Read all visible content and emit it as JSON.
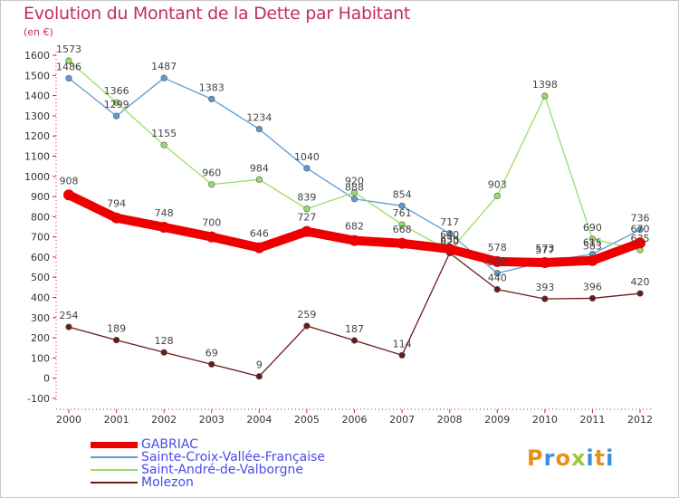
{
  "title": "Evolution du Montant de la Dette par Habitant",
  "unit_label": "(en €)",
  "logo": {
    "text": "Proxiti",
    "letters": [
      {
        "ch": "P",
        "color": "#e8901a"
      },
      {
        "ch": "r",
        "color": "#3b8fd6"
      },
      {
        "ch": "o",
        "color": "#e8901a"
      },
      {
        "ch": "x",
        "color": "#9bc73a"
      },
      {
        "ch": "i",
        "color": "#3b8fd6"
      },
      {
        "ch": "t",
        "color": "#e8901a"
      },
      {
        "ch": "i",
        "color": "#3b8fd6"
      }
    ]
  },
  "chart_data": {
    "type": "line",
    "title": "Evolution du Montant de la Dette par Habitant",
    "ylabel": "(en €)",
    "xlabel": "",
    "x": [
      "2000",
      "2001",
      "2002",
      "2003",
      "2004",
      "2005",
      "2006",
      "2007",
      "2008",
      "2009",
      "2010",
      "2011",
      "2012"
    ],
    "ylim": [
      -100,
      1600
    ],
    "yticks": [
      -100,
      0,
      100,
      200,
      300,
      400,
      500,
      600,
      700,
      800,
      900,
      1000,
      1100,
      1200,
      1300,
      1400,
      1500,
      1600
    ],
    "grid": false,
    "legend_position": "bottom-left",
    "series": [
      {
        "name": "GABRIAC",
        "color": "#ee0000",
        "values": [
          908,
          794,
          748,
          700,
          646,
          727,
          682,
          668,
          640,
          578,
          573,
          583,
          670
        ],
        "labels": [
          "908",
          "794",
          "748",
          "700",
          "646",
          "727",
          "682",
          "668",
          "640",
          "578",
          "573",
          "583",
          "670"
        ]
      },
      {
        "name": "Sainte-Croix-Vallée-Française",
        "color": "#5b9bd5",
        "values": [
          1486,
          1299,
          1487,
          1383,
          1234,
          1040,
          888,
          854,
          717,
          520,
          577,
          615,
          736
        ],
        "labels": [
          "1486",
          "1299",
          "1487",
          "1383",
          "1234",
          "1040",
          "888",
          "854",
          "717",
          "520",
          "577",
          "615",
          "736"
        ]
      },
      {
        "name": "Saint-André-de-Valborgne",
        "color": "#99dd66",
        "values": [
          1573,
          1366,
          1155,
          960,
          984,
          839,
          920,
          761,
          630,
          903,
          1398,
          690,
          635
        ],
        "labels": [
          "1573",
          "1366",
          "1155",
          "960",
          "984",
          "839",
          "920",
          "761",
          "630",
          "903",
          "1398",
          "690",
          "635"
        ]
      },
      {
        "name": "Molezon",
        "color": "#6b1a1a",
        "values": [
          254,
          189,
          128,
          69,
          9,
          259,
          187,
          114,
          620,
          440,
          393,
          396,
          420
        ],
        "labels": [
          "254",
          "189",
          "128",
          "69",
          "9",
          "259",
          "187",
          "114",
          "620",
          "440",
          "393",
          "396",
          "420"
        ]
      }
    ]
  }
}
